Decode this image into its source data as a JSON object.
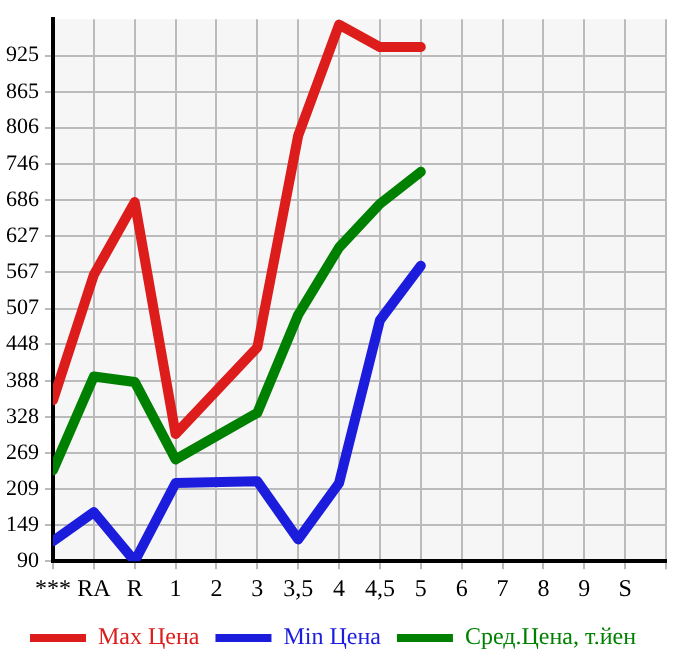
{
  "chart_data": {
    "type": "line",
    "categories": [
      "***",
      "RA",
      "R",
      "1",
      "2",
      "3",
      "3,5",
      "4",
      "4,5",
      "5",
      "6",
      "7",
      "8",
      "9",
      "S"
    ],
    "series": [
      {
        "name": "Max Цена",
        "color": "#dd1c1c",
        "values": [
          356,
          563,
          683,
          300,
          null,
          443,
          793,
          976,
          939,
          939,
          null,
          null,
          null,
          null,
          null
        ]
      },
      {
        "name": "Min Цена",
        "color": "#1c1cdd",
        "values": [
          123,
          171,
          90,
          219,
          null,
          222,
          126,
          219,
          488,
          578,
          null,
          null,
          null,
          null,
          null
        ]
      },
      {
        "name": "Сред.Цена, т.йен",
        "color": "#008000",
        "values": [
          240,
          395,
          386,
          258,
          null,
          335,
          497,
          608,
          680,
          733,
          null,
          null,
          null,
          null,
          null
        ]
      }
    ],
    "ylim": [
      90,
      985
    ],
    "yticks": [
      90,
      149,
      209,
      269,
      328,
      388,
      448,
      507,
      567,
      627,
      686,
      746,
      806,
      865,
      925
    ],
    "grid": true,
    "legend": "bottom",
    "marker": "none",
    "line_style": "solid"
  }
}
